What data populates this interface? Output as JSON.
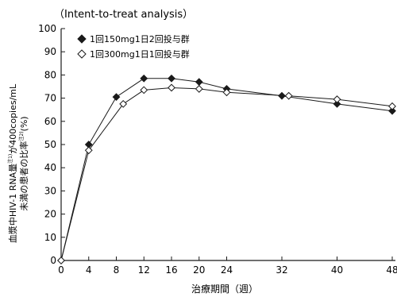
{
  "chart_data": {
    "type": "line",
    "subtitle": "（Intent-to-treat analysis）",
    "xlabel": "治療期間（週）",
    "ylabel_line1": "血漿中HIV-1 RNA量",
    "ylabel_line1_sup": "注1)",
    "ylabel_line1_tail": "が400copies/mL",
    "ylabel_line2": "未満の患者の比率",
    "ylabel_line2_sup": "注2)",
    "ylabel_line2_tail": "(%)",
    "xlim": [
      0,
      48
    ],
    "ylim": [
      0,
      100
    ],
    "xticks": [
      0,
      4,
      8,
      12,
      16,
      20,
      24,
      32,
      40,
      48
    ],
    "yticks": [
      0,
      10,
      20,
      30,
      40,
      50,
      60,
      70,
      80,
      90,
      100
    ],
    "legend_position": "top-left",
    "grid": false,
    "series": [
      {
        "name": "1回150mg1日2回投与群",
        "marker": "filled-diamond",
        "color": "#1a1a1a",
        "x": [
          0,
          4,
          8,
          12,
          16,
          20,
          24,
          32,
          40,
          48
        ],
        "values": [
          0,
          50,
          70.5,
          78.5,
          78.5,
          77,
          74,
          71,
          67.5,
          64.5
        ]
      },
      {
        "name": "1回300mg1日1回投与群",
        "marker": "open-diamond",
        "color": "#1a1a1a",
        "x": [
          0,
          4,
          9,
          12,
          16,
          20,
          24,
          33,
          40,
          48
        ],
        "values": [
          0,
          47.5,
          67.5,
          73.5,
          74.5,
          74,
          72.5,
          71,
          69.5,
          66.5
        ]
      }
    ]
  }
}
